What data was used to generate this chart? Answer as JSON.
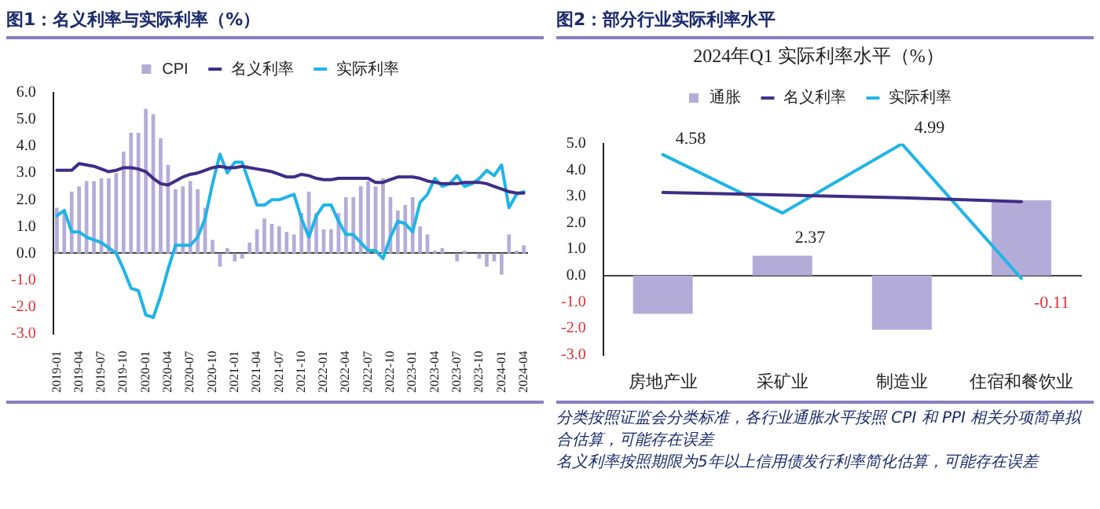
{
  "chart_data": [
    {
      "type": "bar",
      "title": "图1：名义利率与实际利率（%）",
      "categories": [
        "2019-01",
        null,
        null,
        "2019-04",
        null,
        null,
        "2019-07",
        null,
        null,
        "2019-10",
        null,
        null,
        "2020-01",
        null,
        null,
        "2020-04",
        null,
        null,
        "2020-07",
        null,
        null,
        "2020-10",
        null,
        null,
        "2021-01",
        null,
        null,
        "2021-04",
        null,
        null,
        "2021-07",
        null,
        null,
        "2021-10",
        null,
        null,
        "2022-01",
        null,
        null,
        "2022-04",
        null,
        null,
        "2022-07",
        null,
        null,
        "2022-10",
        null,
        null,
        "2023-01",
        null,
        null,
        "2023-04",
        null,
        null,
        "2023-07",
        null,
        null,
        "2023-10",
        null,
        null,
        "2024-01",
        null,
        null,
        "2024-04"
      ],
      "series": [
        {
          "name": "CPI",
          "color": "#b4acd8",
          "values": [
            1.7,
            1.5,
            2.3,
            2.5,
            2.7,
            2.7,
            2.8,
            2.8,
            3.0,
            3.8,
            4.5,
            4.5,
            5.4,
            5.2,
            4.3,
            3.3,
            2.4,
            2.5,
            2.7,
            2.4,
            1.7,
            0.5,
            -0.5,
            0.2,
            -0.3,
            -0.2,
            0.4,
            0.9,
            1.3,
            1.1,
            1.0,
            0.8,
            0.7,
            1.5,
            2.3,
            1.5,
            0.9,
            0.9,
            1.5,
            2.1,
            2.1,
            2.5,
            2.7,
            2.5,
            2.8,
            2.1,
            1.6,
            1.8,
            2.1,
            1.0,
            0.7,
            0.1,
            0.2,
            0.0,
            -0.3,
            0.1,
            0.0,
            -0.2,
            -0.5,
            -0.3,
            -0.8,
            0.7,
            0.1,
            0.3
          ]
        },
        {
          "name": "名义利率",
          "type": "line",
          "color": "#3f2d86",
          "values": [
            3.1,
            3.1,
            3.1,
            3.35,
            3.3,
            3.25,
            3.15,
            3.05,
            3.1,
            3.2,
            3.2,
            3.15,
            3.05,
            2.8,
            2.6,
            2.55,
            2.7,
            2.85,
            2.95,
            3.0,
            3.1,
            3.2,
            3.25,
            3.2,
            3.2,
            3.25,
            3.2,
            3.15,
            3.1,
            3.05,
            2.95,
            2.85,
            2.85,
            2.95,
            2.9,
            2.8,
            2.75,
            2.75,
            2.8,
            2.8,
            2.8,
            2.8,
            2.8,
            2.65,
            2.65,
            2.75,
            2.85,
            2.85,
            2.85,
            2.8,
            2.7,
            2.65,
            2.6,
            2.6,
            2.6,
            2.65,
            2.65,
            2.65,
            2.6,
            2.5,
            2.4,
            2.3,
            2.25,
            2.25
          ]
        },
        {
          "name": "实际利率",
          "type": "line",
          "color": "#1fb4e6",
          "values": [
            1.4,
            1.6,
            0.8,
            0.8,
            0.6,
            0.5,
            0.4,
            0.2,
            0.0,
            -0.6,
            -1.3,
            -1.4,
            -2.3,
            -2.4,
            -1.6,
            -0.6,
            0.3,
            0.3,
            0.3,
            0.6,
            1.3,
            2.6,
            3.7,
            3.0,
            3.4,
            3.4,
            2.6,
            1.8,
            1.8,
            2.0,
            2.0,
            2.1,
            2.2,
            1.3,
            0.6,
            1.4,
            1.8,
            1.8,
            1.2,
            0.7,
            0.7,
            0.4,
            0.1,
            0.1,
            -0.2,
            0.6,
            1.2,
            1.1,
            0.8,
            1.9,
            2.2,
            2.8,
            2.5,
            2.6,
            2.9,
            2.5,
            2.6,
            2.8,
            3.1,
            2.9,
            3.3,
            1.7,
            2.2,
            2.3
          ]
        }
      ],
      "ylim": [
        -3,
        6
      ],
      "yticks": [
        {
          "value": -3,
          "label": "-3.0"
        },
        {
          "value": -2,
          "label": "-2.0"
        },
        {
          "value": -1,
          "label": "-1.0"
        },
        {
          "value": 0,
          "label": "0.0"
        },
        {
          "value": 1,
          "label": "1.0"
        },
        {
          "value": 2,
          "label": "2.0"
        },
        {
          "value": 3,
          "label": "3.0"
        },
        {
          "value": 4,
          "label": "4.0"
        },
        {
          "value": 5,
          "label": "5.0"
        },
        {
          "value": 6,
          "label": "6.0"
        }
      ],
      "legend": "top",
      "marker": "none"
    },
    {
      "type": "bar",
      "title": "图2：部分行业实际利率水平",
      "subtitle": "2024年Q1 实际利率水平（%）",
      "categories": [
        "房地产业",
        "采矿业",
        "制造业",
        "住宿和餐饮业"
      ],
      "series": [
        {
          "name": "通胀",
          "color": "#b4acd8",
          "values": [
            -1.45,
            0.75,
            -2.05,
            2.85
          ]
        },
        {
          "name": "名义利率",
          "type": "line",
          "color": "#3f2d86",
          "values": [
            3.15,
            3.05,
            2.95,
            2.8
          ]
        },
        {
          "name": "实际利率",
          "type": "line",
          "color": "#1fb4e6",
          "values": [
            4.58,
            2.37,
            4.99,
            -0.11
          ],
          "value_labels": [
            "4.58",
            "2.37",
            "4.99",
            "-0.11"
          ]
        }
      ],
      "ylim": [
        -3,
        5
      ],
      "yticks": [
        {
          "value": -3,
          "label": "-3.0"
        },
        {
          "value": -2,
          "label": "-2.0"
        },
        {
          "value": -1,
          "label": "-1.0"
        },
        {
          "value": 0,
          "label": "0.0"
        },
        {
          "value": 1,
          "label": "1.0"
        },
        {
          "value": 2,
          "label": "2.0"
        },
        {
          "value": 3,
          "label": "3.0"
        },
        {
          "value": 4,
          "label": "4.0"
        },
        {
          "value": 5,
          "label": "5.0"
        }
      ],
      "legend": "top",
      "marker": "none",
      "annotations": [
        "分类按照证监会分类标准，各行业通胀水平按照 CPI 和 PPI 相关分项简单拟合估算，可能存在误差",
        "名义利率按照期限为5年以上信用债发行利率简化估算，可能存在误差"
      ]
    }
  ]
}
